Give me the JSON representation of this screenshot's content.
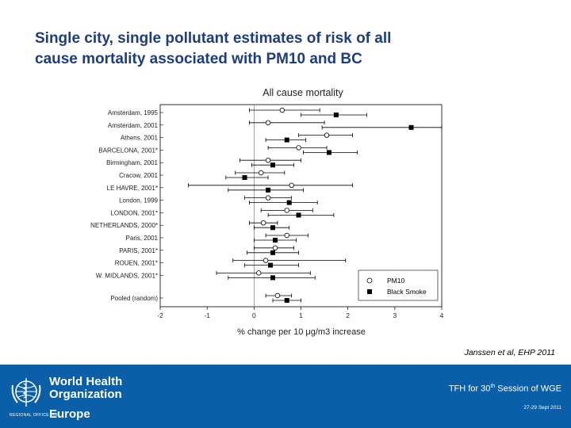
{
  "slide": {
    "title_line1": "Single city, single pollutant estimates of risk of all",
    "title_line2": "cause mortality associated with  PM10 and BC",
    "citation": "Janssen et al, EHP 2011"
  },
  "footer": {
    "org_name_line1": "World Health",
    "org_name_line2": "Organization",
    "region_label": "REGIONAL OFFICE FOR",
    "region": "Europe",
    "session_prefix": "TFH for 30",
    "session_sup": "th",
    "session_suffix": " Session of WGE",
    "dates": "27-29 Sept 2011",
    "background_color": "#0a5fa8",
    "emblem_icon": "who-emblem-icon"
  },
  "chart_data": {
    "type": "forest",
    "title": "All cause mortality",
    "xlabel": "% change per 10 μg/m3 increase",
    "xlim": [
      -2,
      4
    ],
    "xticks": [
      "-2",
      "-1",
      "0",
      "1",
      "2",
      "3",
      "4"
    ],
    "categories": [
      "Amsterdam, 1995",
      "Amsterdam, 2001",
      "Athens, 2001",
      "BARCELONA, 2001*",
      "Birmingham, 2001",
      "Cracow, 2001",
      "LE HAVRE, 2001*",
      "London, 1999",
      "LONDON, 2001*",
      "NETHERLANDS, 2000*",
      "Paris, 2001",
      "PARIS, 2001*",
      "ROUEN, 2001*",
      "W. MIDLANDS, 2001*",
      "Pooled (random)"
    ],
    "series": [
      {
        "name": "PM10",
        "marker": "open-circle",
        "color": "#000000",
        "values": [
          0.6,
          0.3,
          1.55,
          0.95,
          0.3,
          0.15,
          0.8,
          0.3,
          0.7,
          0.2,
          0.7,
          0.45,
          0.25,
          0.1,
          0.5
        ],
        "ci_low": [
          -0.1,
          -0.1,
          0.95,
          0.3,
          -0.3,
          -0.4,
          -1.4,
          -0.2,
          0.15,
          -0.1,
          0.25,
          0.0,
          -0.45,
          -0.8,
          0.25
        ],
        "ci_high": [
          1.4,
          1.5,
          2.1,
          1.55,
          1.0,
          0.65,
          2.1,
          0.8,
          1.25,
          0.5,
          1.15,
          0.85,
          1.95,
          1.2,
          0.8
        ]
      },
      {
        "name": "Black Smoke",
        "marker": "filled-square",
        "color": "#000000",
        "values": [
          1.75,
          3.35,
          0.7,
          1.6,
          0.4,
          -0.2,
          0.3,
          0.75,
          0.95,
          0.4,
          0.45,
          0.4,
          0.35,
          0.4,
          0.7
        ],
        "ci_low": [
          1.0,
          1.45,
          0.25,
          1.05,
          -0.05,
          -0.6,
          -0.55,
          -0.1,
          0.3,
          0.0,
          0.0,
          -0.15,
          -0.2,
          -0.55,
          0.4
        ],
        "ci_high": [
          2.4,
          4.0,
          1.1,
          2.2,
          0.85,
          0.3,
          1.05,
          1.35,
          1.7,
          0.75,
          0.9,
          0.95,
          0.95,
          1.3,
          1.0
        ]
      }
    ],
    "reference_line": 0,
    "legend": [
      "PM10",
      "Black Smoke"
    ],
    "legend_position": "bottom-right"
  }
}
